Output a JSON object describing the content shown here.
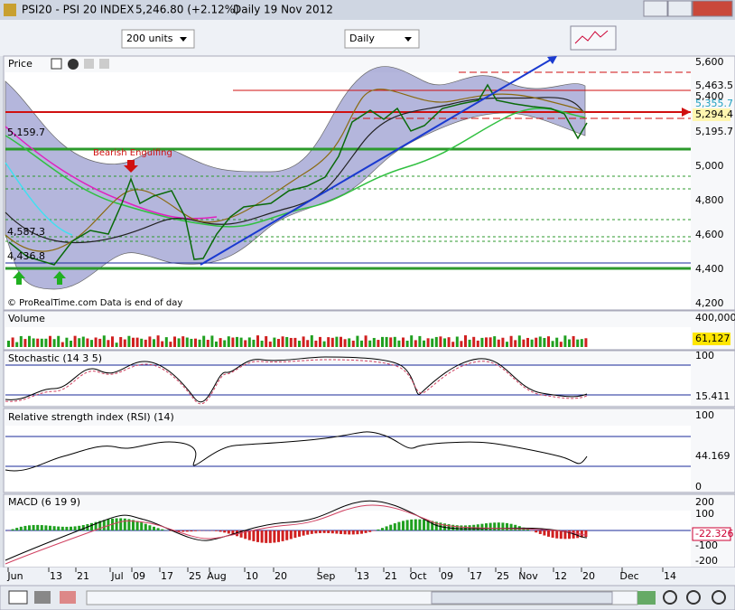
{
  "window": {
    "title": "PSI20 - PSI 20 INDEX",
    "quote": "5,246.80 (+2.12%)",
    "period": "Daily",
    "date": "19 Nov 2012"
  },
  "toolbar": {
    "units": "200 units",
    "timeframe": "Daily"
  },
  "price_panel": {
    "title": "Price",
    "annotation": "Bearish Engulfing",
    "copyright": "© ProRealTime.com Data is end of day",
    "axis_labels": [
      "5,600",
      "5,463.5",
      "5,400",
      "5,355.7",
      "5,294.4",
      "5,195.7",
      "5,000",
      "4,800",
      "4,600",
      "4,400",
      "4,200"
    ],
    "left_labels": [
      "5,159.7",
      "4,587.3",
      "4,436.8"
    ]
  },
  "volume_panel": {
    "title": "Volume",
    "axis_labels": [
      "400,000",
      "61,127"
    ]
  },
  "stochastic_panel": {
    "title": "Stochastic (14 3 5)",
    "axis_labels": [
      "100",
      "15.411"
    ]
  },
  "rsi_panel": {
    "title": "Relative strength index (RSI) (14)",
    "axis_labels": [
      "100",
      "44.169",
      "0"
    ]
  },
  "macd_panel": {
    "title": "MACD (6 19 9)",
    "axis_labels": [
      "200",
      "100",
      "-100",
      "-200",
      "-22.326"
    ]
  },
  "x_axis": {
    "labels": [
      "Jun",
      "13",
      "21",
      "Jul",
      "09",
      "17",
      "25",
      "Aug",
      "10",
      "20",
      "Sep",
      "13",
      "21",
      "Oct",
      "09",
      "17",
      "25",
      "Nov",
      "12",
      "20",
      "Dec",
      "14"
    ]
  }
}
